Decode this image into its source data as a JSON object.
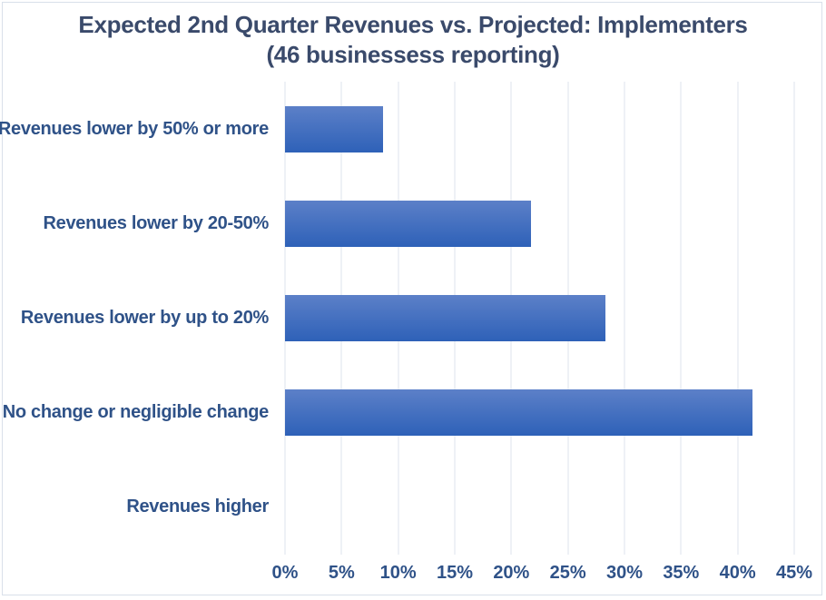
{
  "title": {
    "line1": "Expected 2nd Quarter Revenues vs. Projected: Implementers",
    "line2": "(46 businessess reporting)"
  },
  "chart_data": {
    "type": "bar",
    "orientation": "horizontal",
    "title": "Expected 2nd Quarter Revenues vs. Projected: Implementers (46 businessess reporting)",
    "categories": [
      "Revenues lower by 50% or more",
      "Revenues lower by 20-50%",
      "Revenues lower by up to 20%",
      "No change or negligible change",
      "Revenues higher"
    ],
    "values": [
      8.7,
      21.7,
      28.3,
      41.3,
      0
    ],
    "value_unit": "%",
    "x_tick_labels": [
      "0%",
      "5%",
      "10%",
      "15%",
      "20%",
      "25%",
      "30%",
      "35%",
      "40%",
      "45%"
    ],
    "xlim": [
      0,
      45
    ],
    "xlabel": "",
    "ylabel": "",
    "grid": true,
    "legend": false,
    "colors": {
      "bar_gradient_top": "#5C80C8",
      "bar_gradient_bottom": "#2E61B8",
      "gridline": "#DCE3EC",
      "title_text": "#3A4A6B",
      "category_label_text": "#2F5288",
      "tick_label_text": "#2F5288",
      "frame_border": "#D9E0EA"
    }
  }
}
